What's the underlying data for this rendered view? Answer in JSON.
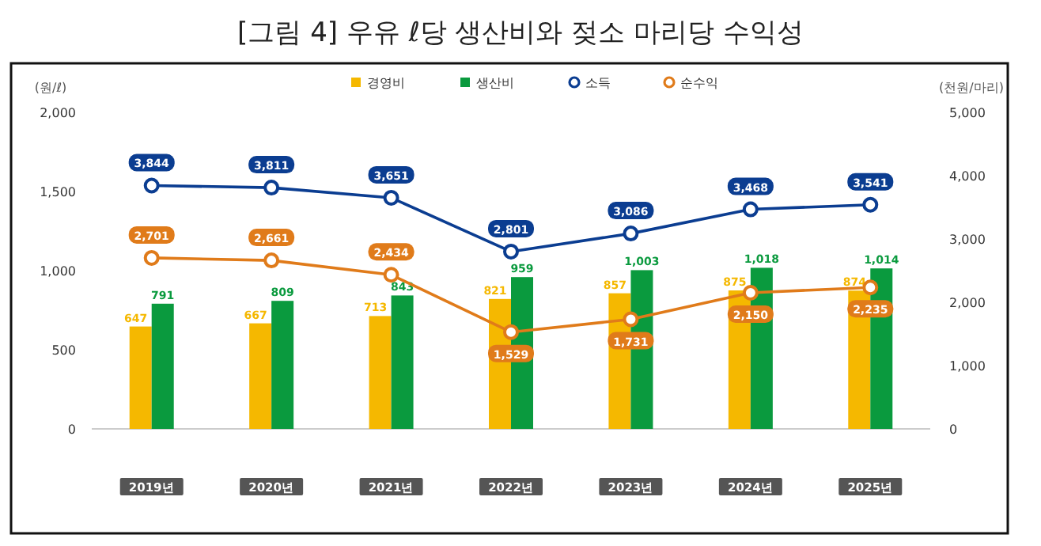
{
  "chart_data": {
    "type": "bar",
    "title": "[그림 4] 우유 ℓ당 생산비와 젖소 마리당 수익성",
    "ylabel": "(원/ℓ)",
    "y2label": "(천원/마리)",
    "categories": [
      "2019년",
      "2020년",
      "2021년",
      "2022년",
      "2023년",
      "2024년",
      "2025년"
    ],
    "series": [
      {
        "name": "경영비",
        "color": "#f5b800",
        "values": [
          647,
          667,
          713,
          821,
          857,
          875,
          874
        ],
        "value_labels": [
          "647",
          "667",
          "713",
          "821",
          "857",
          "875",
          "874"
        ]
      },
      {
        "name": "생산비",
        "color": "#0a9a3e",
        "values": [
          791,
          809,
          843,
          959,
          1003,
          1018,
          1014
        ],
        "value_labels": [
          "791",
          "809",
          "843",
          "959",
          "1,003",
          "1,018",
          "1,014"
        ]
      },
      {
        "name": "소득",
        "type": "line",
        "axis": "y2",
        "color": "#0b3d91",
        "marker": "circle",
        "values": [
          3844,
          3811,
          3651,
          2801,
          3086,
          3468,
          3541
        ],
        "value_labels": [
          "3,844",
          "3,811",
          "3,651",
          "2,801",
          "3,086",
          "3,468",
          "3,541"
        ]
      },
      {
        "name": "순수익",
        "type": "line",
        "axis": "y2",
        "color": "#e07b1a",
        "marker": "circle",
        "values": [
          2701,
          2661,
          2434,
          1529,
          1731,
          2150,
          2235
        ],
        "value_labels": [
          "2,701",
          "2,661",
          "2,434",
          "1,529",
          "1,731",
          "2,150",
          "2,235"
        ]
      }
    ],
    "ylim": [
      0,
      2000
    ],
    "yticks": [
      0,
      500,
      {
        "value": 1000,
        "label": "1,000"
      },
      {
        "value": 1500,
        "label": "1,500"
      },
      {
        "value": 2000,
        "label": "2,000"
      }
    ],
    "y2lim": [
      0,
      5000
    ],
    "y2ticks": [
      0,
      {
        "value": 1000,
        "label": "1,000"
      },
      {
        "value": 2000,
        "label": "2,000"
      },
      {
        "value": 3000,
        "label": "3,000"
      },
      {
        "value": 4000,
        "label": "4,000"
      },
      {
        "value": 5000,
        "label": "5,000"
      }
    ],
    "legend": "top"
  }
}
